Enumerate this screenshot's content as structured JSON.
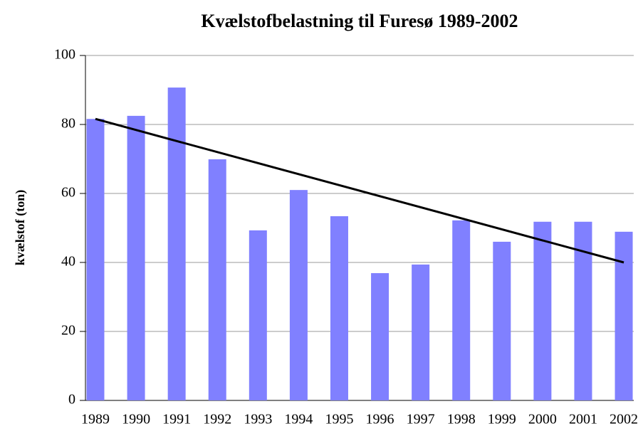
{
  "chart_data": {
    "type": "bar",
    "title": "Kvælstofbelastning til Furesø 1989-2002",
    "y_label": "kvælstof (ton)",
    "categories": [
      "1989",
      "1990",
      "1991",
      "1992",
      "1993",
      "1994",
      "1995",
      "1996",
      "1997",
      "1998",
      "1999",
      "2000",
      "2001",
      "2002"
    ],
    "values": [
      81.6,
      82.5,
      90.7,
      69.9,
      49.3,
      61,
      53.4,
      36.9,
      39.4,
      52.2,
      46,
      51.8,
      51.8,
      48.9
    ],
    "color": "#8080ff",
    "trend": {
      "from": 81.6,
      "to": 40,
      "color": "#000000"
    },
    "ylim": [
      0,
      100
    ],
    "yticks": [
      0,
      20,
      40,
      60,
      80,
      100
    ],
    "grid": true
  }
}
